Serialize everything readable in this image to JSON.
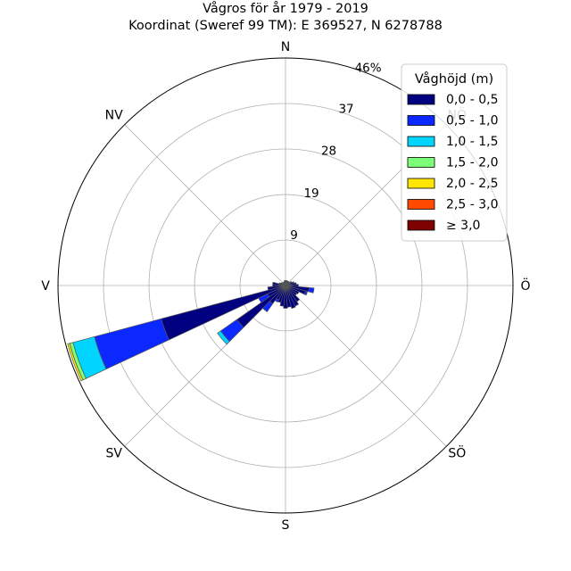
{
  "title": {
    "line1": "Vågros för år 1979 - 2019",
    "line2": "Koordinat (Sweref 99 TM): E 369527, N 6278788"
  },
  "chart_data": {
    "type": "polar_bar",
    "title": "Vågros för år 1979 - 2019",
    "subtitle": "Koordinat (Sweref 99 TM): E 369527, N 6278788",
    "direction_labels": [
      "N",
      "NV",
      "V",
      "SV",
      "S",
      "SÖ",
      "Ö",
      "NÖ"
    ],
    "direction_angles_deg": [
      0,
      315,
      270,
      225,
      180,
      135,
      90,
      45
    ],
    "radial_ticks": [
      "9",
      "19",
      "28",
      "37"
    ],
    "radial_tick_values": [
      9.2,
      18.4,
      27.6,
      36.8
    ],
    "radial_max": 46,
    "radial_max_label": "46%",
    "radial_unit": "%",
    "sector_width_deg": 10,
    "legend": {
      "title": "Våghöjd (m)",
      "placement": "top-right",
      "entries": [
        {
          "label": "0,0 - 0,5",
          "color": "#000080"
        },
        {
          "label": "0,5 - 1,0",
          "color": "#0a28ff"
        },
        {
          "label": "1,0 - 1,5",
          "color": "#00d4ff"
        },
        {
          "label": "1,5 - 2,0",
          "color": "#7dff7a"
        },
        {
          "label": "2,0 - 2,5",
          "color": "#ffe600"
        },
        {
          "label": "2,5 - 3,0",
          "color": "#ff4a00"
        },
        {
          "label": "≥ 3,0",
          "color": "#7f0000"
        }
      ]
    },
    "sectors": [
      {
        "direction_deg": 250,
        "values": [
          26.0,
          14.0,
          4.5,
          0.7,
          0.4,
          0.0,
          0.0
        ]
      },
      {
        "direction_deg": 230,
        "values": [
          12.0,
          4.0,
          0.8,
          0.0,
          0.0,
          0.0,
          0.0
        ]
      },
      {
        "direction_deg": 240,
        "values": [
          4.0,
          2.0,
          0.0,
          0.0,
          0.0,
          0.0,
          0.0
        ]
      },
      {
        "direction_deg": 260,
        "values": [
          3.6,
          0.0,
          0.0,
          0.0,
          0.0,
          0.0,
          0.0
        ]
      },
      {
        "direction_deg": 270,
        "values": [
          2.6,
          0.0,
          0.0,
          0.0,
          0.0,
          0.0,
          0.0
        ]
      },
      {
        "direction_deg": 280,
        "values": [
          2.6,
          0.0,
          0.0,
          0.0,
          0.0,
          0.0,
          0.0
        ]
      },
      {
        "direction_deg": 290,
        "values": [
          1.3,
          0.0,
          0.0,
          0.0,
          0.0,
          0.0,
          0.0
        ]
      },
      {
        "direction_deg": 300,
        "values": [
          1.0,
          0.0,
          0.0,
          0.0,
          0.0,
          0.0,
          0.0
        ]
      },
      {
        "direction_deg": 310,
        "values": [
          0.8,
          0.0,
          0.0,
          0.0,
          0.0,
          0.0,
          0.0
        ]
      },
      {
        "direction_deg": 320,
        "values": [
          0.7,
          0.0,
          0.0,
          0.0,
          0.0,
          0.0,
          0.0
        ]
      },
      {
        "direction_deg": 330,
        "values": [
          0.8,
          0.0,
          0.0,
          0.0,
          0.0,
          0.0,
          0.0
        ]
      },
      {
        "direction_deg": 340,
        "values": [
          0.8,
          0.0,
          0.0,
          0.0,
          0.0,
          0.0,
          0.0
        ]
      },
      {
        "direction_deg": 350,
        "values": [
          1.0,
          0.0,
          0.0,
          0.0,
          0.0,
          0.0,
          0.0
        ]
      },
      {
        "direction_deg": 0,
        "values": [
          1.0,
          0.0,
          0.0,
          0.0,
          0.0,
          0.0,
          0.0
        ]
      },
      {
        "direction_deg": 10,
        "values": [
          1.0,
          0.0,
          0.0,
          0.0,
          0.0,
          0.0,
          0.0
        ]
      },
      {
        "direction_deg": 20,
        "values": [
          1.0,
          0.0,
          0.0,
          0.0,
          0.0,
          0.0,
          0.0
        ]
      },
      {
        "direction_deg": 30,
        "values": [
          1.0,
          0.0,
          0.0,
          0.0,
          0.0,
          0.0,
          0.0
        ]
      },
      {
        "direction_deg": 40,
        "values": [
          1.0,
          0.0,
          0.0,
          0.0,
          0.0,
          0.0,
          0.0
        ]
      },
      {
        "direction_deg": 50,
        "values": [
          1.0,
          0.0,
          0.0,
          0.0,
          0.0,
          0.0,
          0.0
        ]
      },
      {
        "direction_deg": 60,
        "values": [
          1.4,
          0.0,
          0.0,
          0.0,
          0.0,
          0.0,
          0.0
        ]
      },
      {
        "direction_deg": 70,
        "values": [
          1.8,
          0.0,
          0.0,
          0.0,
          0.0,
          0.0,
          0.0
        ]
      },
      {
        "direction_deg": 80,
        "values": [
          2.2,
          0.0,
          0.0,
          0.0,
          0.0,
          0.0,
          0.0
        ]
      },
      {
        "direction_deg": 90,
        "values": [
          2.6,
          0.0,
          0.0,
          0.0,
          0.0,
          0.0,
          0.0
        ]
      },
      {
        "direction_deg": 100,
        "values": [
          4.8,
          1.0,
          0.0,
          0.0,
          0.0,
          0.0,
          0.0
        ]
      },
      {
        "direction_deg": 110,
        "values": [
          4.2,
          0.4,
          0.0,
          0.0,
          0.0,
          0.0,
          0.0
        ]
      },
      {
        "direction_deg": 120,
        "values": [
          3.0,
          0.0,
          0.0,
          0.0,
          0.0,
          0.0,
          0.0
        ]
      },
      {
        "direction_deg": 130,
        "values": [
          2.8,
          0.0,
          0.0,
          0.0,
          0.0,
          0.0,
          0.0
        ]
      },
      {
        "direction_deg": 140,
        "values": [
          4.0,
          0.0,
          0.0,
          0.0,
          0.0,
          0.0,
          0.0
        ]
      },
      {
        "direction_deg": 150,
        "values": [
          4.6,
          0.0,
          0.0,
          0.0,
          0.0,
          0.0,
          0.0
        ]
      },
      {
        "direction_deg": 160,
        "values": [
          4.8,
          0.0,
          0.0,
          0.0,
          0.0,
          0.0,
          0.0
        ]
      },
      {
        "direction_deg": 170,
        "values": [
          4.4,
          0.0,
          0.0,
          0.0,
          0.0,
          0.0,
          0.0
        ]
      },
      {
        "direction_deg": 180,
        "values": [
          4.6,
          0.0,
          0.0,
          0.0,
          0.0,
          0.0,
          0.0
        ]
      },
      {
        "direction_deg": 190,
        "values": [
          4.2,
          0.0,
          0.0,
          0.0,
          0.0,
          0.0,
          0.0
        ]
      },
      {
        "direction_deg": 200,
        "values": [
          3.6,
          0.0,
          0.0,
          0.0,
          0.0,
          0.0,
          0.0
        ]
      },
      {
        "direction_deg": 210,
        "values": [
          3.2,
          0.5,
          0.0,
          0.0,
          0.0,
          0.0,
          0.0
        ]
      },
      {
        "direction_deg": 220,
        "values": [
          4.5,
          2.0,
          0.0,
          0.0,
          0.0,
          0.0,
          0.0
        ]
      }
    ],
    "grid": true
  }
}
